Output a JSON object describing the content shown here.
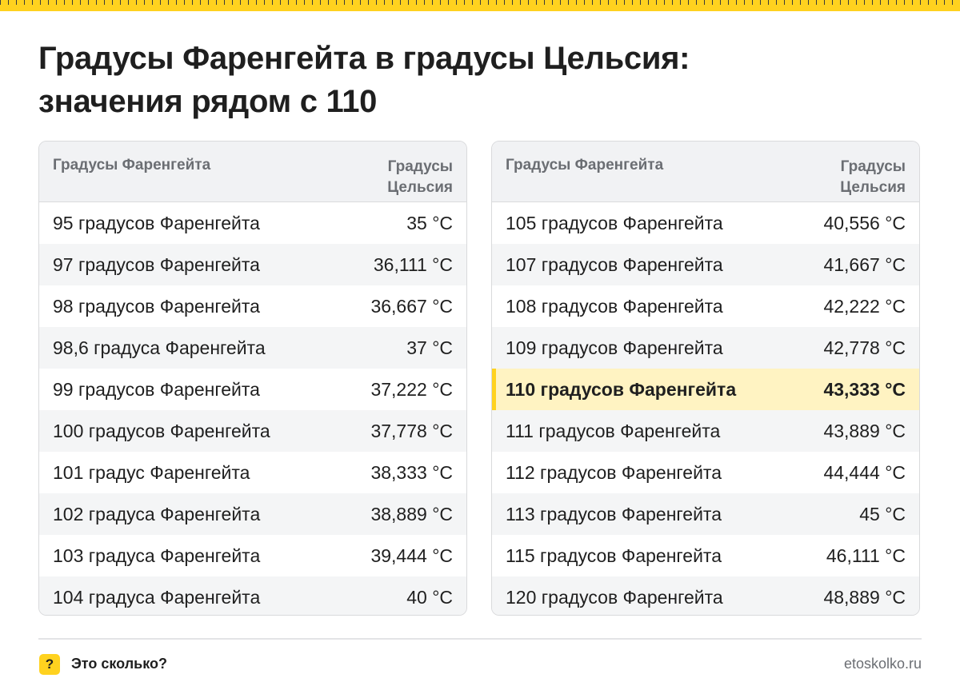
{
  "title": {
    "line1": "Градусы Фаренгейта в градусы Цельсия:",
    "line2": "значения рядом с 110"
  },
  "left_table": {
    "header_f": "Градусы Фаренгейта",
    "header_c": "Градусы Цельсия",
    "rows": [
      {
        "f": "95 градусов Фаренгейта",
        "c": "35 °C"
      },
      {
        "f": "97 градусов Фаренгейта",
        "c": "36,111 °C"
      },
      {
        "f": "98 градусов Фаренгейта",
        "c": "36,667 °C"
      },
      {
        "f": "98,6 градуса Фаренгейта",
        "c": "37 °C"
      },
      {
        "f": "99 градусов Фаренгейта",
        "c": "37,222 °C"
      },
      {
        "f": "100 градусов Фаренгейта",
        "c": "37,778 °C"
      },
      {
        "f": "101 градус Фаренгейта",
        "c": "38,333 °C"
      },
      {
        "f": "102 градуса Фаренгейта",
        "c": "38,889 °C"
      },
      {
        "f": "103 градуса Фаренгейта",
        "c": "39,444 °C"
      },
      {
        "f": "104 градуса Фаренгейта",
        "c": "40 °C"
      }
    ]
  },
  "right_table": {
    "header_f": "Градусы Фаренгейта",
    "header_c": "Градусы Цельсия",
    "rows": [
      {
        "f": "105 градусов Фаренгейта",
        "c": "40,556 °C"
      },
      {
        "f": "107 градусов Фаренгейта",
        "c": "41,667 °C"
      },
      {
        "f": "108 градусов Фаренгейта",
        "c": "42,222 °C"
      },
      {
        "f": "109 градусов Фаренгейта",
        "c": "42,778 °C"
      },
      {
        "f": "110 градусов Фаренгейта",
        "c": "43,333 °C",
        "highlight": true
      },
      {
        "f": "111 градусов Фаренгейта",
        "c": "43,889 °C"
      },
      {
        "f": "112 градусов Фаренгейта",
        "c": "44,444 °C"
      },
      {
        "f": "113 градусов Фаренгейта",
        "c": "45 °C"
      },
      {
        "f": "115 градусов Фаренгейта",
        "c": "46,111 °C"
      },
      {
        "f": "120 градусов Фаренгейта",
        "c": "48,889 °C"
      }
    ]
  },
  "footer": {
    "badge": "?",
    "brand": "Это сколько?",
    "site": "etoskolko.ru"
  },
  "colors": {
    "accent": "#ffd21f",
    "highlight_bg": "#fff3c2",
    "header_bg": "#f1f2f4"
  }
}
